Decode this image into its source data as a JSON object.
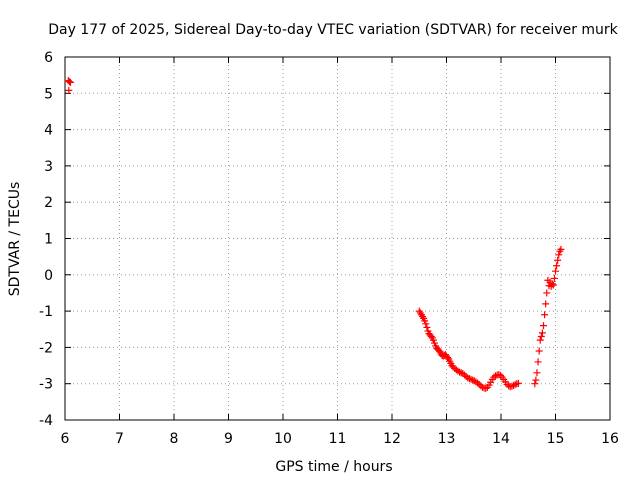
{
  "chart_data": {
    "type": "scatter",
    "title": "Day 177 of 2025, Sidereal Day-to-day VTEC variation (SDTVAR) for receiver murk",
    "xlabel": "GPS time / hours",
    "ylabel": "SDTVAR / TECUs",
    "xlim": [
      6,
      16
    ],
    "ylim": [
      -4,
      6
    ],
    "xticks": [
      "6",
      "7",
      "8",
      "9",
      "10",
      "11",
      "12",
      "13",
      "14",
      "15",
      "16"
    ],
    "yticks": [
      "6",
      "5",
      "4",
      "3",
      "2",
      "1",
      "0",
      "-1",
      "-2",
      "-3",
      "-4"
    ],
    "grid": true,
    "marker": "plus",
    "color": "#ff0000",
    "series": [
      {
        "name": "SDTVAR",
        "points": [
          [
            6.06,
            5.35
          ],
          [
            6.08,
            5.32
          ],
          [
            6.1,
            5.3
          ],
          [
            6.07,
            5.08
          ],
          [
            12.5,
            -1.0
          ],
          [
            12.52,
            -1.05
          ],
          [
            12.54,
            -1.1
          ],
          [
            12.56,
            -1.15
          ],
          [
            12.58,
            -1.2
          ],
          [
            12.6,
            -1.27
          ],
          [
            12.62,
            -1.35
          ],
          [
            12.64,
            -1.45
          ],
          [
            12.66,
            -1.55
          ],
          [
            12.68,
            -1.62
          ],
          [
            12.7,
            -1.66
          ],
          [
            12.72,
            -1.7
          ],
          [
            12.74,
            -1.74
          ],
          [
            12.76,
            -1.8
          ],
          [
            12.78,
            -1.88
          ],
          [
            12.8,
            -1.96
          ],
          [
            12.82,
            -2.02
          ],
          [
            12.84,
            -2.05
          ],
          [
            12.86,
            -2.08
          ],
          [
            12.88,
            -2.12
          ],
          [
            12.9,
            -2.18
          ],
          [
            12.92,
            -2.22
          ],
          [
            12.94,
            -2.24
          ],
          [
            12.96,
            -2.22
          ],
          [
            12.98,
            -2.2
          ],
          [
            13.0,
            -2.24
          ],
          [
            13.02,
            -2.28
          ],
          [
            13.04,
            -2.32
          ],
          [
            13.06,
            -2.38
          ],
          [
            13.08,
            -2.44
          ],
          [
            13.1,
            -2.5
          ],
          [
            13.12,
            -2.54
          ],
          [
            13.15,
            -2.58
          ],
          [
            13.18,
            -2.62
          ],
          [
            13.21,
            -2.65
          ],
          [
            13.24,
            -2.68
          ],
          [
            13.27,
            -2.7
          ],
          [
            13.3,
            -2.72
          ],
          [
            13.33,
            -2.76
          ],
          [
            13.36,
            -2.8
          ],
          [
            13.39,
            -2.84
          ],
          [
            13.42,
            -2.86
          ],
          [
            13.45,
            -2.88
          ],
          [
            13.48,
            -2.9
          ],
          [
            13.51,
            -2.92
          ],
          [
            13.54,
            -2.95
          ],
          [
            13.57,
            -2.98
          ],
          [
            13.6,
            -3.02
          ],
          [
            13.63,
            -3.06
          ],
          [
            13.66,
            -3.1
          ],
          [
            13.69,
            -3.12
          ],
          [
            13.72,
            -3.13
          ],
          [
            13.75,
            -3.1
          ],
          [
            13.78,
            -3.04
          ],
          [
            13.81,
            -2.96
          ],
          [
            13.84,
            -2.88
          ],
          [
            13.87,
            -2.82
          ],
          [
            13.9,
            -2.78
          ],
          [
            13.93,
            -2.76
          ],
          [
            13.96,
            -2.75
          ],
          [
            13.99,
            -2.77
          ],
          [
            14.02,
            -2.82
          ],
          [
            14.05,
            -2.88
          ],
          [
            14.08,
            -2.95
          ],
          [
            14.11,
            -3.02
          ],
          [
            14.14,
            -3.06
          ],
          [
            14.17,
            -3.08
          ],
          [
            14.2,
            -3.07
          ],
          [
            14.23,
            -3.05
          ],
          [
            14.26,
            -3.02
          ],
          [
            14.29,
            -3.0
          ],
          [
            14.32,
            -2.99
          ],
          [
            14.62,
            -3.0
          ],
          [
            14.64,
            -2.9
          ],
          [
            14.66,
            -2.7
          ],
          [
            14.68,
            -2.4
          ],
          [
            14.7,
            -2.1
          ],
          [
            14.72,
            -1.8
          ],
          [
            14.74,
            -1.7
          ],
          [
            14.76,
            -1.6
          ],
          [
            14.78,
            -1.4
          ],
          [
            14.8,
            -1.1
          ],
          [
            14.82,
            -0.8
          ],
          [
            14.84,
            -0.5
          ],
          [
            14.86,
            -0.15
          ],
          [
            14.88,
            -0.3
          ],
          [
            14.9,
            -0.2
          ],
          [
            14.92,
            -0.32
          ],
          [
            14.94,
            -0.25
          ],
          [
            14.96,
            -0.28
          ],
          [
            14.98,
            -0.1
          ],
          [
            15.0,
            0.1
          ],
          [
            15.02,
            0.25
          ],
          [
            15.04,
            0.4
          ],
          [
            15.06,
            0.55
          ],
          [
            15.08,
            0.65
          ],
          [
            15.1,
            0.7
          ]
        ]
      }
    ]
  }
}
